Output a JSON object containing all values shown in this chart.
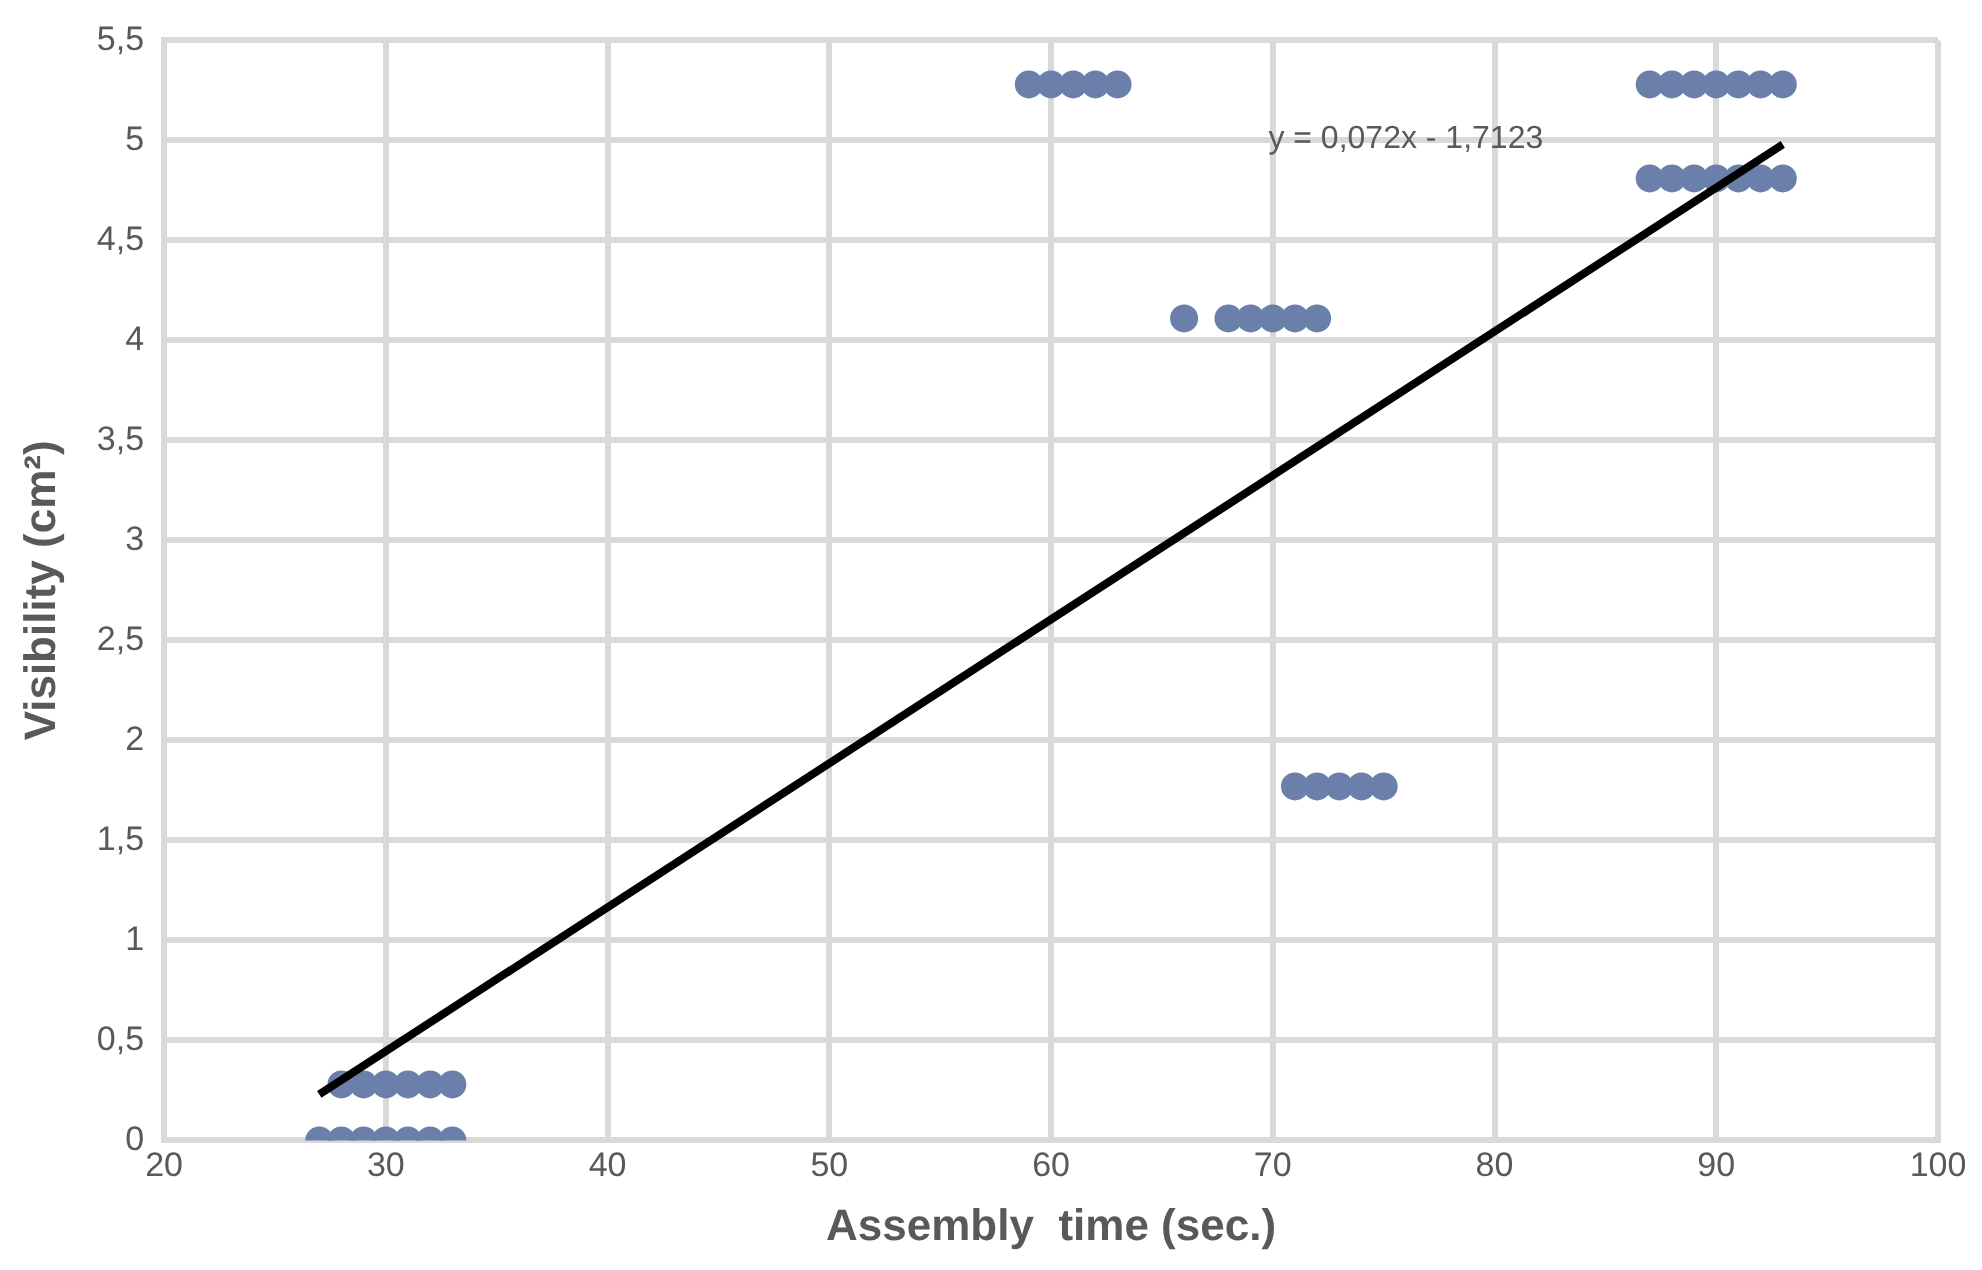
{
  "chart_data": {
    "type": "scatter",
    "xlabel": "Assembly  time (sec.)",
    "ylabel": "Visibility (cm²)",
    "xlim": [
      20,
      100
    ],
    "xticks": [
      20,
      30,
      40,
      50,
      60,
      70,
      80,
      90,
      100
    ],
    "ylim": [
      0,
      5.5
    ],
    "yticks": [
      0,
      {
        "value": 0.5,
        "label": "0,5"
      },
      1,
      {
        "value": 1.5,
        "label": "1,5"
      },
      2,
      {
        "value": 2.5,
        "label": "2,5"
      },
      3,
      {
        "value": 3.5,
        "label": "3,5"
      },
      4,
      {
        "value": 4.5,
        "label": "4,5"
      },
      5,
      {
        "value": 5.5,
        "label": "5,5"
      }
    ],
    "grid": true,
    "marker": "circle",
    "annotations": [
      "y = 0,072x - 1,7123"
    ],
    "series": [
      {
        "color": "#6a80ab",
        "x": [
          27,
          28,
          29,
          30,
          31,
          32,
          33,
          28,
          29,
          30,
          31,
          32,
          33,
          59,
          60,
          61,
          62,
          63,
          66,
          68,
          69,
          70,
          71,
          72,
          71,
          72,
          73,
          74,
          75,
          87,
          88,
          89,
          90,
          91,
          92,
          93,
          87,
          88,
          89,
          90,
          91,
          92,
          93
        ],
        "values": [
          0,
          0,
          0,
          0,
          0,
          0,
          0,
          0.28,
          0.28,
          0.28,
          0.28,
          0.28,
          0.28,
          5.28,
          5.28,
          5.28,
          5.28,
          5.28,
          4.11,
          4.11,
          4.11,
          4.11,
          4.11,
          4.11,
          1.77,
          1.77,
          1.77,
          1.77,
          1.77,
          5.28,
          5.28,
          5.28,
          5.28,
          5.28,
          5.28,
          5.28,
          4.81,
          4.81,
          4.81,
          4.81,
          4.81,
          4.81,
          4.81
        ]
      },
      {
        "type": "line",
        "color": "#000000",
        "marker": "none",
        "x": [
          27,
          93
        ],
        "values": [
          0.23,
          4.98
        ]
      }
    ]
  }
}
